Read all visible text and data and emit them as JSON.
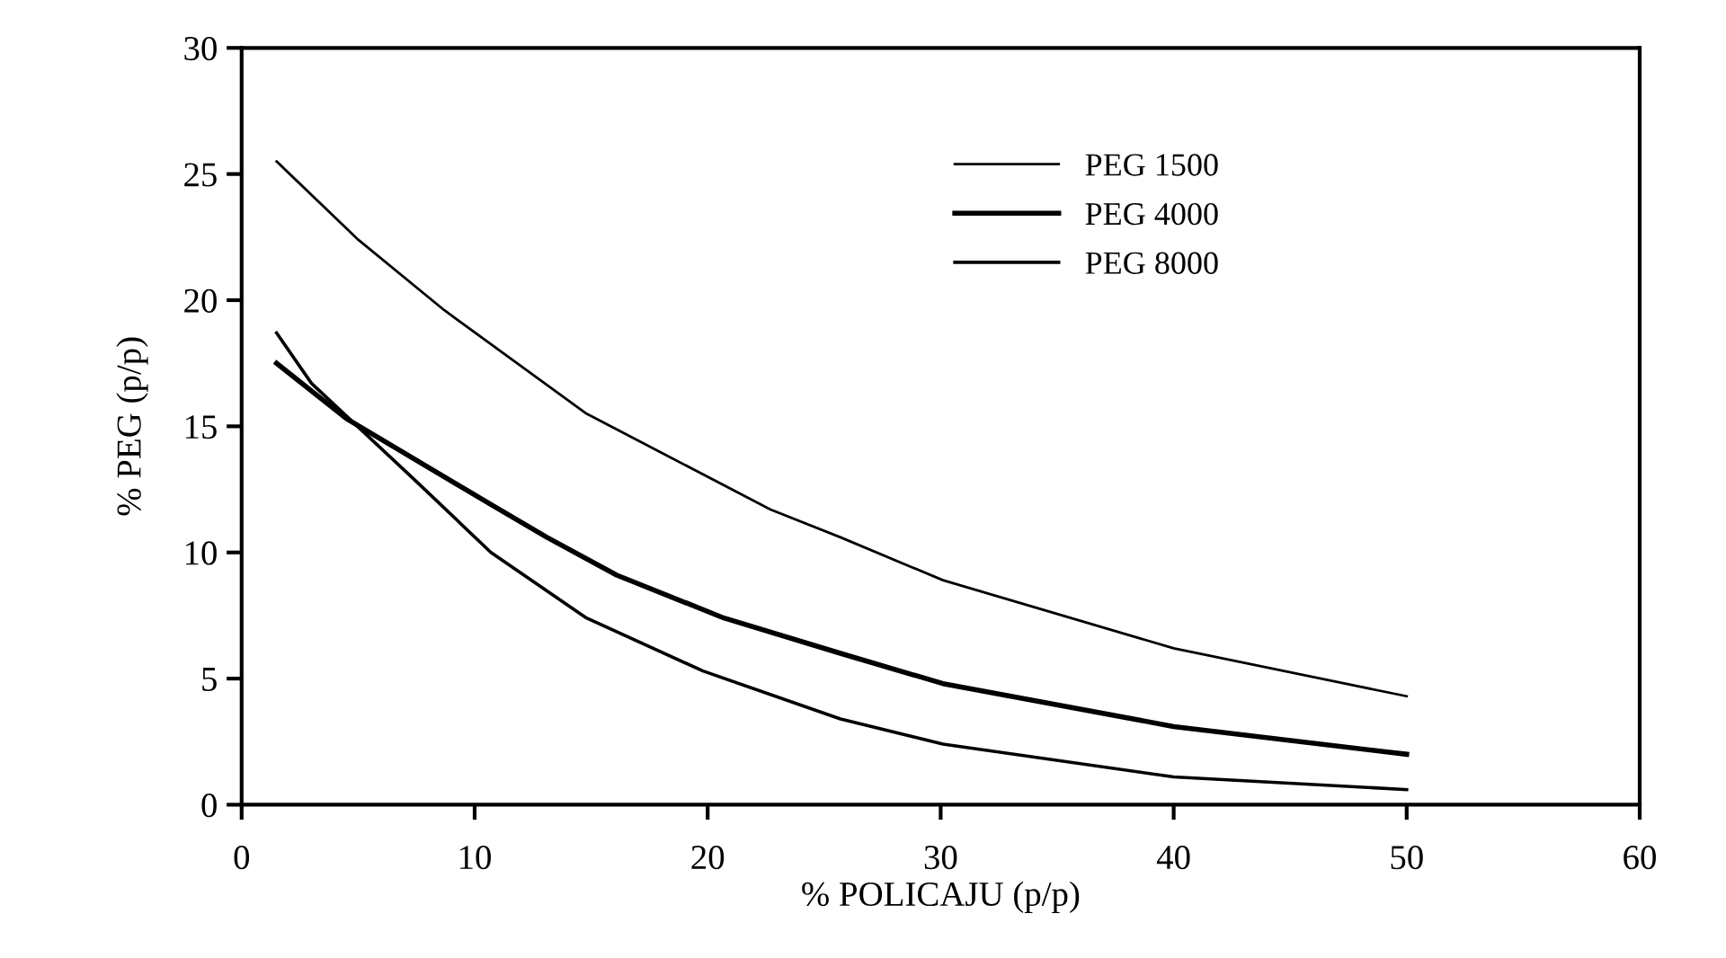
{
  "chart_data": {
    "type": "line",
    "xlabel": "% POLICAJU (p/p)",
    "ylabel": "% PEG (p/p)",
    "xlim": [
      0,
      60
    ],
    "ylim": [
      0,
      30
    ],
    "xticks": [
      0,
      10,
      20,
      30,
      40,
      50,
      60
    ],
    "yticks": [
      0,
      5,
      10,
      15,
      20,
      25,
      30
    ],
    "grid": false,
    "legend": "top right",
    "marker": "none",
    "line_style": "solid",
    "series": [
      {
        "name": "PEG 1500",
        "color": "#000000",
        "x": [
          1.5,
          5,
          8.7,
          14.8,
          22.7,
          25.7,
          30.1,
          40,
          50
        ],
        "values": [
          25.5,
          22.4,
          19.6,
          15.5,
          11.7,
          10.6,
          8.9,
          6.2,
          4.3
        ]
      },
      {
        "name": "PEG 4000",
        "color": "#000000",
        "x": [
          1.5,
          4.5,
          10.7,
          13.1,
          16.1,
          20.7,
          25.7,
          30.1,
          40,
          50
        ],
        "values": [
          17.5,
          15.3,
          11.9,
          10.6,
          9.1,
          7.4,
          6.0,
          4.8,
          3.1,
          2.0
        ]
      },
      {
        "name": "PEG 8000",
        "color": "#000000",
        "x": [
          1.5,
          3.0,
          7.4,
          10.7,
          14.8,
          19.8,
          25.7,
          30.1,
          40,
          50
        ],
        "values": [
          18.7,
          16.7,
          12.9,
          10.0,
          7.4,
          5.3,
          3.4,
          2.4,
          1.1,
          0.6
        ]
      }
    ]
  }
}
